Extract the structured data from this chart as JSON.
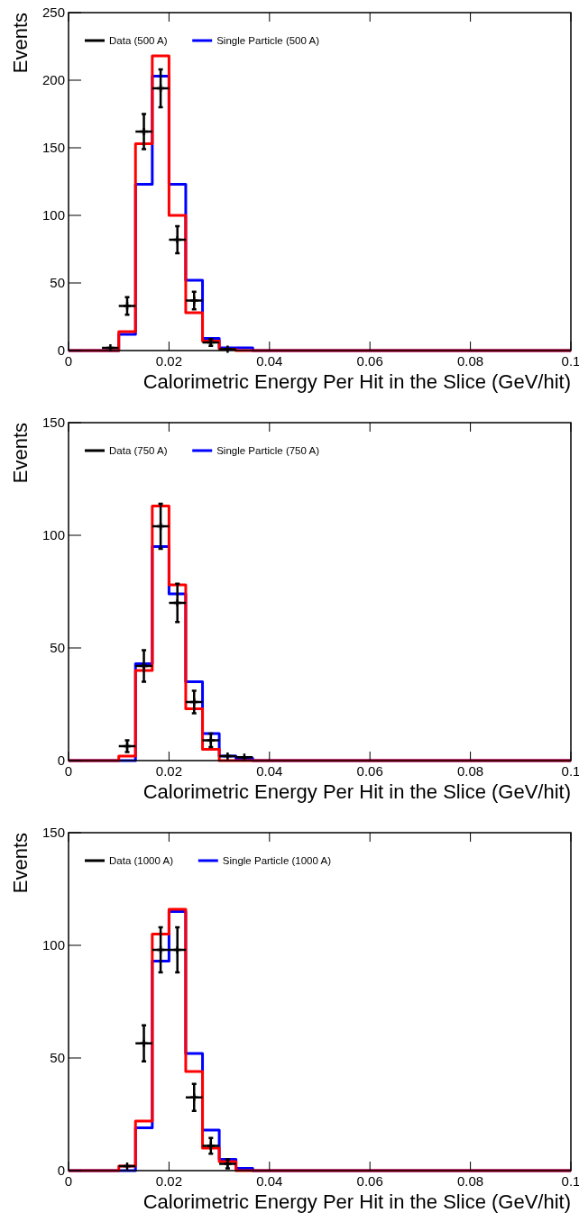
{
  "chart_data": [
    {
      "type": "histogram",
      "xlabel": "Calorimetric Energy Per Hit in the Slice (GeV/hit)",
      "ylabel": "Events",
      "xlim": [
        0,
        0.1
      ],
      "xticks": [
        0,
        0.02,
        0.04,
        0.06,
        0.08,
        0.1
      ],
      "ylim": [
        0,
        250
      ],
      "yticks": [
        0,
        50,
        100,
        150,
        200,
        250
      ],
      "legend": "top left",
      "marker": "cross",
      "bins": [
        0,
        0.00333,
        0.00667,
        0.01,
        0.01333,
        0.01667,
        0.02,
        0.02333,
        0.02667,
        0.03,
        0.03333,
        0.03667,
        0.04,
        0.04333,
        0.04667,
        0.05,
        0.05333,
        0.05667,
        0.06,
        0.06333,
        0.06667,
        0.07,
        0.07333,
        0.07667,
        0.08,
        0.08333,
        0.08667,
        0.09,
        0.09333,
        0.09667,
        0.1
      ],
      "series": [
        {
          "type": "scatter",
          "name": "Data (500 A)",
          "color": "#000000",
          "x": [
            0.00833,
            0.01167,
            0.015,
            0.01833,
            0.02167,
            0.025,
            0.02833,
            0.03167
          ],
          "values": [
            2,
            33,
            162,
            194,
            82,
            37,
            6,
            1
          ],
          "errors": [
            null,
            6.5,
            13,
            14,
            10,
            6.5,
            2.5,
            null
          ],
          "xerrors": [
            0.00167,
            0.00167,
            0.00167,
            0.00167,
            0.00167,
            0.00167,
            0.00167,
            0.00167
          ]
        },
        {
          "type": "histogram",
          "name": "Single Particle (500 A)",
          "color": "#0000ff",
          "values": [
            0,
            0,
            0,
            12,
            123,
            203,
            123,
            52,
            9,
            2,
            2,
            0,
            0,
            0,
            0,
            0,
            0,
            0,
            0,
            0,
            0,
            0,
            0,
            0,
            0,
            0,
            0,
            0,
            0,
            0
          ]
        },
        {
          "type": "histogram",
          "color": "#ff0000",
          "values": [
            0,
            0,
            0,
            14,
            153,
            218,
            100,
            28,
            7,
            1,
            0,
            0,
            0,
            0,
            0,
            0,
            0,
            0,
            0,
            0,
            0,
            0,
            0,
            0,
            0,
            0,
            0,
            0,
            0,
            0
          ]
        }
      ]
    },
    {
      "type": "histogram",
      "xlabel": "Calorimetric Energy Per Hit in the Slice (GeV/hit)",
      "ylabel": "Events",
      "xlim": [
        0,
        0.1
      ],
      "xticks": [
        0,
        0.02,
        0.04,
        0.06,
        0.08,
        0.1
      ],
      "ylim": [
        0,
        150
      ],
      "yticks": [
        0,
        50,
        100,
        150
      ],
      "legend": "top left",
      "marker": "cross",
      "bins": [
        0,
        0.00333,
        0.00667,
        0.01,
        0.01333,
        0.01667,
        0.02,
        0.02333,
        0.02667,
        0.03,
        0.03333,
        0.03667,
        0.04,
        0.04333,
        0.04667,
        0.05,
        0.05333,
        0.05667,
        0.06,
        0.06333,
        0.06667,
        0.07,
        0.07333,
        0.07667,
        0.08,
        0.08333,
        0.08667,
        0.09,
        0.09333,
        0.09667,
        0.1
      ],
      "series": [
        {
          "type": "scatter",
          "name": "Data (750 A)",
          "color": "#000000",
          "x": [
            0.01167,
            0.015,
            0.01833,
            0.02167,
            0.025,
            0.02833,
            0.03167,
            0.035
          ],
          "values": [
            6.4,
            42,
            104,
            70,
            26,
            9,
            2,
            1.5
          ],
          "errors": [
            2.6,
            7,
            10,
            8.5,
            5,
            3,
            null,
            null
          ],
          "xerrors": [
            0.00167,
            0.00167,
            0.00167,
            0.00167,
            0.00167,
            0.00167,
            0.00167,
            0.00167
          ]
        },
        {
          "type": "histogram",
          "name": "Single Particle (750 A)",
          "color": "#0000ff",
          "values": [
            0,
            0,
            0,
            0,
            43,
            95,
            74,
            35,
            12,
            2,
            1,
            0,
            0,
            0,
            0,
            0,
            0,
            0,
            0,
            0,
            0,
            0,
            0,
            0,
            0,
            0,
            0,
            0,
            0,
            0
          ]
        },
        {
          "type": "histogram",
          "color": "#ff0000",
          "values": [
            0,
            0,
            0,
            2,
            40,
            113,
            78,
            23,
            5,
            0,
            0,
            0,
            0,
            0,
            0,
            0,
            0,
            0,
            0,
            0,
            0,
            0,
            0,
            0,
            0,
            0,
            0,
            0,
            0,
            0
          ]
        }
      ]
    },
    {
      "type": "histogram",
      "xlabel": "Calorimetric Energy Per Hit in the Slice (GeV/hit)",
      "ylabel": "Events",
      "xlim": [
        0,
        0.1
      ],
      "xticks": [
        0,
        0.02,
        0.04,
        0.06,
        0.08,
        0.1
      ],
      "ylim": [
        0,
        150
      ],
      "yticks": [
        0,
        50,
        100,
        150
      ],
      "legend": "top left",
      "marker": "cross",
      "bins": [
        0,
        0.00333,
        0.00667,
        0.01,
        0.01333,
        0.01667,
        0.02,
        0.02333,
        0.02667,
        0.03,
        0.03333,
        0.03667,
        0.04,
        0.04333,
        0.04667,
        0.05,
        0.05333,
        0.05667,
        0.06,
        0.06333,
        0.06667,
        0.07,
        0.07333,
        0.07667,
        0.08,
        0.08333,
        0.08667,
        0.09,
        0.09333,
        0.09667,
        0.1
      ],
      "series": [
        {
          "type": "scatter",
          "name": "Data (1000 A)",
          "color": "#000000",
          "x": [
            0.01167,
            0.015,
            0.01833,
            0.02167,
            0.025,
            0.02833,
            0.03167
          ],
          "values": [
            2,
            56.5,
            98,
            98,
            32.5,
            11,
            3
          ],
          "errors": [
            null,
            8,
            10,
            10,
            6,
            3.5,
            2
          ],
          "xerrors": [
            0.00167,
            0.00167,
            0.00167,
            0.00167,
            0.00167,
            0.00167,
            0.00167
          ]
        },
        {
          "type": "histogram",
          "name": "Single Particle (1000 A)",
          "color": "#0000ff",
          "values": [
            0,
            0,
            0,
            0,
            19,
            93,
            115,
            52,
            18,
            5,
            1,
            0,
            0,
            0,
            0,
            0,
            0,
            0,
            0,
            0,
            0,
            0,
            0,
            0,
            0,
            0,
            0,
            0,
            0,
            0
          ]
        },
        {
          "type": "histogram",
          "color": "#ff0000",
          "values": [
            0,
            0,
            0,
            2,
            22,
            105,
            116,
            44,
            10,
            4,
            0,
            0,
            0,
            0,
            0,
            0,
            0,
            0,
            0,
            0,
            0,
            0,
            0,
            0,
            0,
            0,
            0,
            0,
            0,
            0
          ]
        }
      ]
    }
  ]
}
